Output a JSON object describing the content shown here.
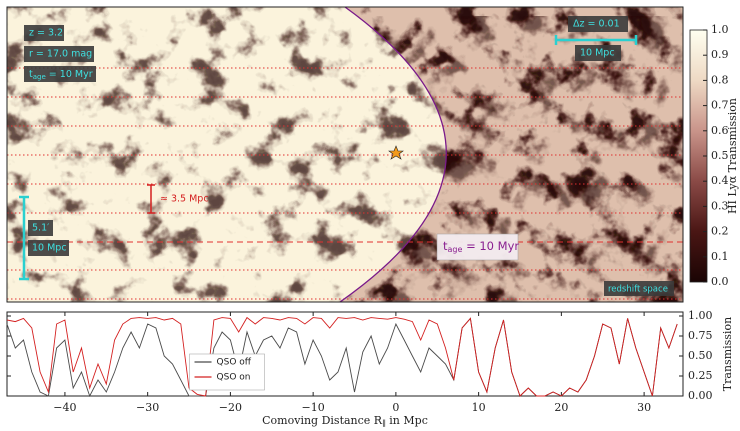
{
  "chart_data": [
    {
      "type": "image",
      "colormap": [
        "#1a0404",
        "#4a1614",
        "#8a4a46",
        "#c9948a",
        "#eed9c4",
        "#fffff0"
      ],
      "clim": [
        0,
        1
      ],
      "cticks": [
        {
          "value": 0,
          "label": "0.0"
        },
        0.1,
        0.2,
        0.3,
        0.4,
        0.5,
        0.6,
        0.7,
        0.8,
        0.9,
        {
          "value": 1,
          "label": "1.0"
        }
      ],
      "clabel": "HI Lyα Transmission",
      "annotations": {
        "redshift": "z = 3.2",
        "magnitude": "r = 17.0 mag",
        "age_left": [
          "t",
          "age",
          " = 10 Myr"
        ],
        "delta_z": "Δz = 0.01",
        "scale_top": "10 Mpc",
        "angle": "5.1′",
        "scale_left": "10 Mpc",
        "separation": "≈ 3.5 Mpc",
        "age_front": [
          "t",
          "age",
          " = 10 Myr"
        ],
        "space": "redshift space"
      }
    },
    {
      "type": "line",
      "xlabel": [
        "Comoving Distance R",
        "∥",
        " in Mpc"
      ],
      "ylabel": "Transmission",
      "legend": "lower center",
      "x": [
        -47,
        -46,
        -45,
        -44,
        -43,
        -42,
        -41,
        -40,
        -39,
        -38,
        -37,
        -36,
        -35,
        -34,
        -33,
        -32,
        -31,
        -30,
        -29,
        -28,
        -27,
        -26,
        -25,
        -24,
        -23,
        -22,
        -21,
        -20,
        -19,
        -18,
        -17,
        -16,
        -15,
        -14,
        -13,
        -12,
        -11,
        -10,
        -9,
        -8,
        -7,
        -6,
        -5,
        -4,
        -3,
        -2,
        -1,
        0,
        1,
        2,
        3,
        4,
        5,
        6,
        7,
        8,
        9,
        10,
        11,
        12,
        13,
        14,
        15,
        16,
        17,
        18,
        19,
        20,
        21,
        22,
        23,
        24,
        25,
        26,
        27,
        28,
        29,
        30,
        31,
        32,
        33,
        34
      ],
      "series": [
        {
          "name": "QSO off",
          "color": "#4a4a4a",
          "values": [
            0.9,
            0.6,
            0.7,
            0.3,
            0.05,
            0.0,
            0.6,
            0.7,
            0.1,
            0.3,
            0.0,
            0.2,
            0.05,
            0.3,
            0.6,
            0.8,
            0.6,
            0.9,
            0.85,
            0.5,
            0.4,
            0.2,
            0.0,
            0.0,
            0.0,
            0.6,
            0.8,
            0.7,
            0.3,
            0.8,
            0.5,
            0.7,
            0.75,
            0.6,
            0.85,
            0.8,
            0.4,
            0.7,
            0.5,
            0.2,
            0.3,
            0.6,
            0.05,
            0.55,
            0.75,
            0.4,
            0.6,
            0.9,
            0.7,
            0.5,
            0.3,
            0.6,
            0.5,
            0.4,
            0.2,
            0.85,
            0.97,
            0.3,
            0.05,
            0.6,
            0.95,
            0.3,
            0.0,
            0.1,
            0.0,
            0.0,
            0.05,
            0.0,
            0.1,
            0.05,
            0.2,
            0.5,
            0.9,
            0.85,
            0.4,
            0.97,
            0.6,
            0.3,
            0.0,
            0.85,
            0.6,
            0.9
          ]
        },
        {
          "name": "QSO on",
          "color": "#d42020",
          "values": [
            0.95,
            0.93,
            0.97,
            0.85,
            0.3,
            0.05,
            0.9,
            0.95,
            0.3,
            0.6,
            0.1,
            0.4,
            0.15,
            0.7,
            0.9,
            0.97,
            0.98,
            0.97,
            0.98,
            0.95,
            0.97,
            0.9,
            0.1,
            0.02,
            0.0,
            0.95,
            0.98,
            0.97,
            0.8,
            0.98,
            0.9,
            0.98,
            0.97,
            0.95,
            0.98,
            0.97,
            0.9,
            0.98,
            0.97,
            0.85,
            0.98,
            0.97,
            0.98,
            0.95,
            0.98,
            0.97,
            0.96,
            0.98,
            0.96,
            0.93,
            0.7,
            0.95,
            0.9,
            0.6,
            0.2,
            0.85,
            0.97,
            0.3,
            0.05,
            0.6,
            0.95,
            0.3,
            0.0,
            0.1,
            0.0,
            0.0,
            0.05,
            0.0,
            0.1,
            0.05,
            0.2,
            0.5,
            0.9,
            0.85,
            0.4,
            0.97,
            0.6,
            0.3,
            0.0,
            0.85,
            0.6,
            0.9
          ]
        }
      ],
      "xlim": [
        -47,
        34.7
      ],
      "ylim": [
        0,
        1.05
      ],
      "xticks": [
        {
          "value": -40,
          "label": "−40"
        },
        {
          "value": -30,
          "label": "−30"
        },
        {
          "value": -20,
          "label": "−20"
        },
        {
          "value": -10,
          "label": "−10"
        },
        0,
        10,
        20,
        30
      ],
      "yticks": [
        {
          "value": 0,
          "label": "0.00"
        },
        {
          "value": 0.25,
          "label": "0.25"
        },
        {
          "value": 0.5,
          "label": "0.50"
        },
        {
          "value": 0.75,
          "label": "0.75"
        },
        {
          "value": 1,
          "label": "1.00"
        }
      ]
    }
  ]
}
